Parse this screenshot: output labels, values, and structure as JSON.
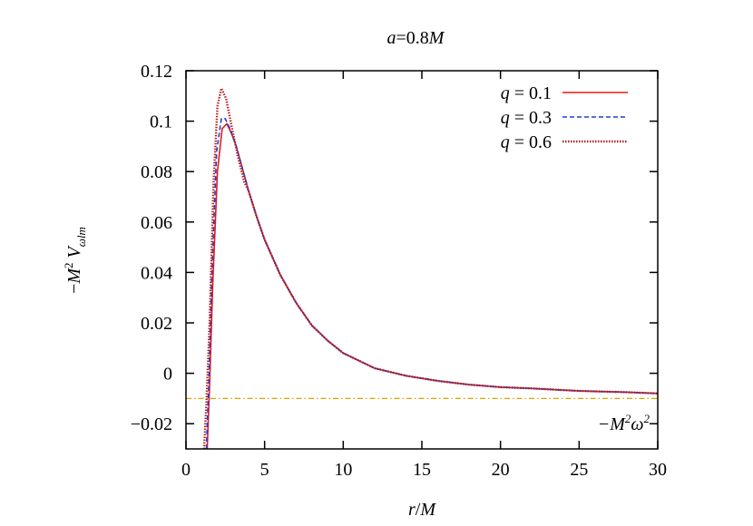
{
  "chart_data": {
    "type": "line",
    "title": "a=0.8M",
    "xlabel": "r/M",
    "ylabel": "−M² Vωlm",
    "xlim": [
      0,
      30
    ],
    "ylim": [
      -0.03,
      0.12
    ],
    "x_ticks": [
      0,
      5,
      10,
      15,
      20,
      25,
      30
    ],
    "x_tick_labels": [
      "0",
      "5",
      "10",
      "15",
      "20",
      "25",
      "30"
    ],
    "y_ticks": [
      -0.02,
      0,
      0.02,
      0.04,
      0.06,
      0.08,
      0.1,
      0.12
    ],
    "y_tick_labels": [
      "−0.02",
      "0",
      "0.02",
      "0.04",
      "0.06",
      "0.08",
      "0.1",
      "0.12"
    ],
    "grid": false,
    "legend_position": "top-right",
    "series": [
      {
        "name": "q = 0.1",
        "color": "#e31a1c",
        "style": "solid",
        "x": [
          1.35,
          1.5,
          1.7,
          2.0,
          2.3,
          2.6,
          2.9,
          3.2,
          3.6,
          4.0,
          4.5,
          5.0,
          6.0,
          7.0,
          8.0,
          9.0,
          10.0,
          12.0,
          14.0,
          16.0,
          18.0,
          20.0,
          22.0,
          25.0,
          28.0,
          30.0
        ],
        "y": [
          -0.03,
          -0.005,
          0.035,
          0.08,
          0.097,
          0.099,
          0.095,
          0.09,
          0.081,
          0.072,
          0.062,
          0.053,
          0.039,
          0.028,
          0.019,
          0.013,
          0.008,
          0.002,
          -0.001,
          -0.003,
          -0.0045,
          -0.0055,
          -0.006,
          -0.007,
          -0.0075,
          -0.008
        ]
      },
      {
        "name": "q = 0.3",
        "color": "#1f3fcf",
        "style": "dashed",
        "x": [
          1.3,
          1.45,
          1.65,
          1.95,
          2.25,
          2.5,
          2.8,
          3.2,
          3.6,
          4.0,
          4.5,
          5.0,
          6.0,
          7.0,
          8.0,
          9.0,
          10.0,
          12.0,
          14.0,
          16.0,
          18.0,
          20.0,
          22.0,
          25.0,
          28.0,
          30.0
        ],
        "y": [
          -0.03,
          -0.005,
          0.04,
          0.088,
          0.101,
          0.101,
          0.097,
          0.09,
          0.081,
          0.072,
          0.062,
          0.053,
          0.039,
          0.028,
          0.019,
          0.013,
          0.008,
          0.002,
          -0.001,
          -0.003,
          -0.0045,
          -0.0055,
          -0.006,
          -0.007,
          -0.0075,
          -0.008
        ]
      },
      {
        "name": "q = 0.6",
        "color": "#b52020",
        "style": "dotted",
        "x": [
          1.15,
          1.3,
          1.5,
          1.75,
          2.0,
          2.25,
          2.55,
          2.9,
          3.3,
          3.7,
          4.0,
          4.5,
          5.0,
          6.0,
          7.0,
          8.0,
          9.0,
          10.0,
          12.0,
          14.0,
          16.0,
          18.0,
          20.0,
          22.0,
          25.0,
          28.0,
          30.0
        ],
        "y": [
          -0.03,
          -0.012,
          0.02,
          0.075,
          0.106,
          0.113,
          0.109,
          0.098,
          0.086,
          0.076,
          0.072,
          0.062,
          0.053,
          0.039,
          0.028,
          0.019,
          0.013,
          0.008,
          0.002,
          -0.001,
          -0.003,
          -0.0045,
          -0.0055,
          -0.006,
          -0.007,
          -0.0075,
          -0.008
        ]
      }
    ],
    "reference_line": {
      "label": "−M²ω²",
      "y": -0.01,
      "color": "#e0a000",
      "style": "dash-dot"
    }
  }
}
